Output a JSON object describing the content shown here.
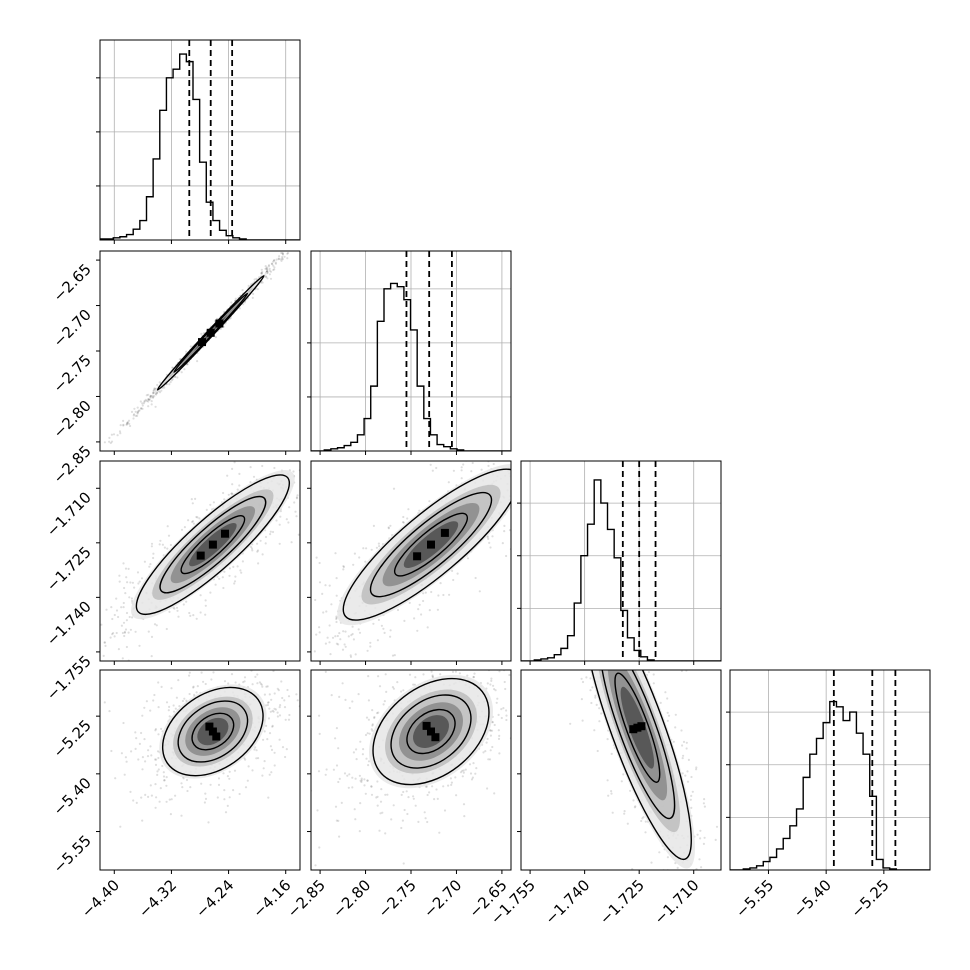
{
  "chart_data": {
    "type": "corner",
    "grid": true,
    "parameters": [
      {
        "range": [
          -4.42,
          -4.14
        ],
        "ticks": [
          -4.4,
          -4.32,
          -4.24,
          -4.16
        ],
        "tick_labels": [
          "−4.40",
          "−4.32",
          "−4.24",
          "−4.16"
        ],
        "quantiles": [
          -4.295,
          -4.265,
          -4.235
        ],
        "histogram": {
          "bin_start": -4.42,
          "bin_width": 0.0093,
          "counts": [
            1,
            1,
            2,
            3,
            5,
            10,
            18,
            40,
            75,
            120,
            150,
            158,
            172,
            165,
            130,
            72,
            35,
            18,
            9,
            4,
            2,
            1,
            0,
            0,
            0,
            0,
            0,
            0,
            0,
            0
          ],
          "ymax": 185,
          "yticks": [
            50,
            100,
            150
          ]
        }
      },
      {
        "range": [
          -2.86,
          -2.64
        ],
        "ticks": [
          -2.85,
          -2.8,
          -2.75,
          -2.7,
          -2.65
        ],
        "tick_labels": [
          "−2.85",
          "−2.80",
          "−2.75",
          "−2.70",
          "−2.65"
        ],
        "quantiles": [
          -2.755,
          -2.73,
          -2.705
        ],
        "histogram": {
          "bin_start": -2.86,
          "bin_width": 0.0073,
          "counts": [
            0,
            0,
            1,
            2,
            3,
            5,
            8,
            15,
            30,
            60,
            120,
            150,
            155,
            152,
            140,
            112,
            60,
            30,
            15,
            6,
            4,
            2,
            1,
            0,
            0,
            0,
            0,
            0,
            0,
            0
          ],
          "ymax": 185,
          "yticks": [
            50,
            100,
            150
          ]
        }
      },
      {
        "range": [
          -1.7575,
          -1.7025
        ],
        "ticks": [
          -1.755,
          -1.74,
          -1.725,
          -1.71
        ],
        "tick_labels": [
          "−1.755",
          "−1.740",
          "−1.725",
          "−1.710"
        ],
        "quantiles": [
          -1.7295,
          -1.725,
          -1.7205
        ],
        "histogram": {
          "bin_start": -1.7575,
          "bin_width": 0.00183,
          "counts": [
            0,
            0,
            1,
            2,
            3,
            6,
            12,
            24,
            55,
            100,
            130,
            172,
            150,
            125,
            98,
            48,
            22,
            10,
            4,
            1,
            0,
            0,
            0,
            0,
            0,
            0,
            0,
            0,
            0,
            0
          ],
          "ymax": 190,
          "yticks": [
            50,
            100,
            150
          ]
        }
      },
      {
        "range": [
          -5.65,
          -5.13
        ],
        "ticks": [
          -5.55,
          -5.4,
          -5.25
        ],
        "tick_labels": [
          "−5.55",
          "−5.40",
          "−5.25"
        ],
        "quantiles": [
          -5.38,
          -5.28,
          -5.22
        ],
        "histogram": {
          "bin_start": -5.65,
          "bin_width": 0.0173,
          "counts": [
            0,
            0,
            1,
            2,
            4,
            8,
            12,
            20,
            30,
            42,
            58,
            88,
            110,
            125,
            140,
            160,
            155,
            142,
            150,
            130,
            110,
            70,
            10,
            2,
            1,
            0,
            0,
            0,
            0,
            0
          ],
          "ymax": 190,
          "yticks": [
            50,
            100,
            150
          ]
        }
      }
    ],
    "pairs": [
      {
        "row": 1,
        "col": 0,
        "center": [
          -4.265,
          -2.73
        ],
        "axes": [
          0.12,
          0.0031
        ],
        "angle_deg": 47,
        "contour_levels": [
          0.39,
          0.86
        ]
      },
      {
        "row": 2,
        "col": 0,
        "center": [
          -4.262,
          -1.7255
        ],
        "axes": [
          0.06,
          0.014
        ],
        "angle_deg": 42,
        "contour_levels": [
          0.39,
          0.86,
          1.4
        ]
      },
      {
        "row": 2,
        "col": 1,
        "center": [
          -2.728,
          -1.7255
        ],
        "axes": [
          0.065,
          0.016
        ],
        "angle_deg": 40,
        "contour_levels": [
          0.39,
          0.86,
          1.4
        ]
      },
      {
        "row": 3,
        "col": 0,
        "center": [
          -4.262,
          -5.29
        ],
        "axes": [
          0.09,
          0.12
        ],
        "angle_deg": -55,
        "contour_levels": [
          0.39,
          0.86,
          1.4
        ]
      },
      {
        "row": 3,
        "col": 1,
        "center": [
          -2.728,
          -5.29
        ],
        "axes": [
          0.09,
          0.12
        ],
        "angle_deg": -52,
        "contour_levels": [
          0.39,
          0.86,
          1.4
        ]
      },
      {
        "row": 3,
        "col": 2,
        "center": [
          -1.7255,
          -5.28
        ],
        "axes": [
          0.012,
          0.14
        ],
        "angle_deg": 20,
        "contour_levels": [
          0.39,
          0.86,
          1.4
        ]
      }
    ]
  }
}
